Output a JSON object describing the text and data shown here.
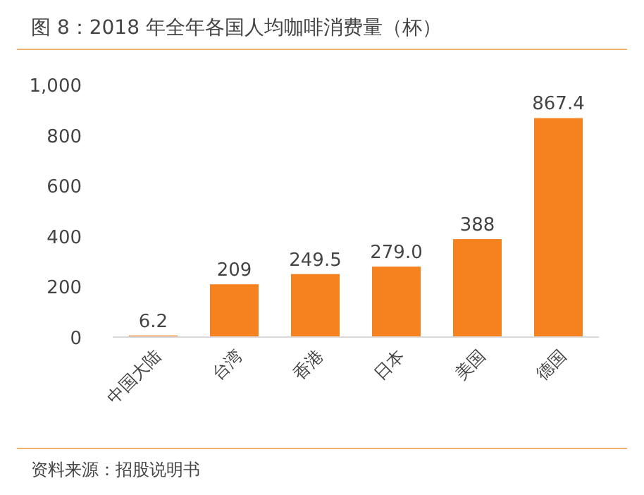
{
  "chart_data": {
    "type": "bar",
    "title": "图 8：2018 年全年各国人均咖啡消费量（杯）",
    "categories": [
      "中国大陆",
      "台湾",
      "香港",
      "日本",
      "美国",
      "德国"
    ],
    "values": [
      6.2,
      209,
      249.5,
      279.0,
      388,
      867.4
    ],
    "value_labels": [
      "6.2",
      "209",
      "249.5",
      "279.0",
      "388",
      "867.4"
    ],
    "color": "#f5821f",
    "ylim": [
      0,
      1000
    ],
    "yticks": [
      0,
      200,
      400,
      600,
      800,
      {
        "value": 1000,
        "label": "1,000"
      }
    ],
    "grid": false,
    "annotations": [
      "资料来源：招股说明书"
    ]
  }
}
